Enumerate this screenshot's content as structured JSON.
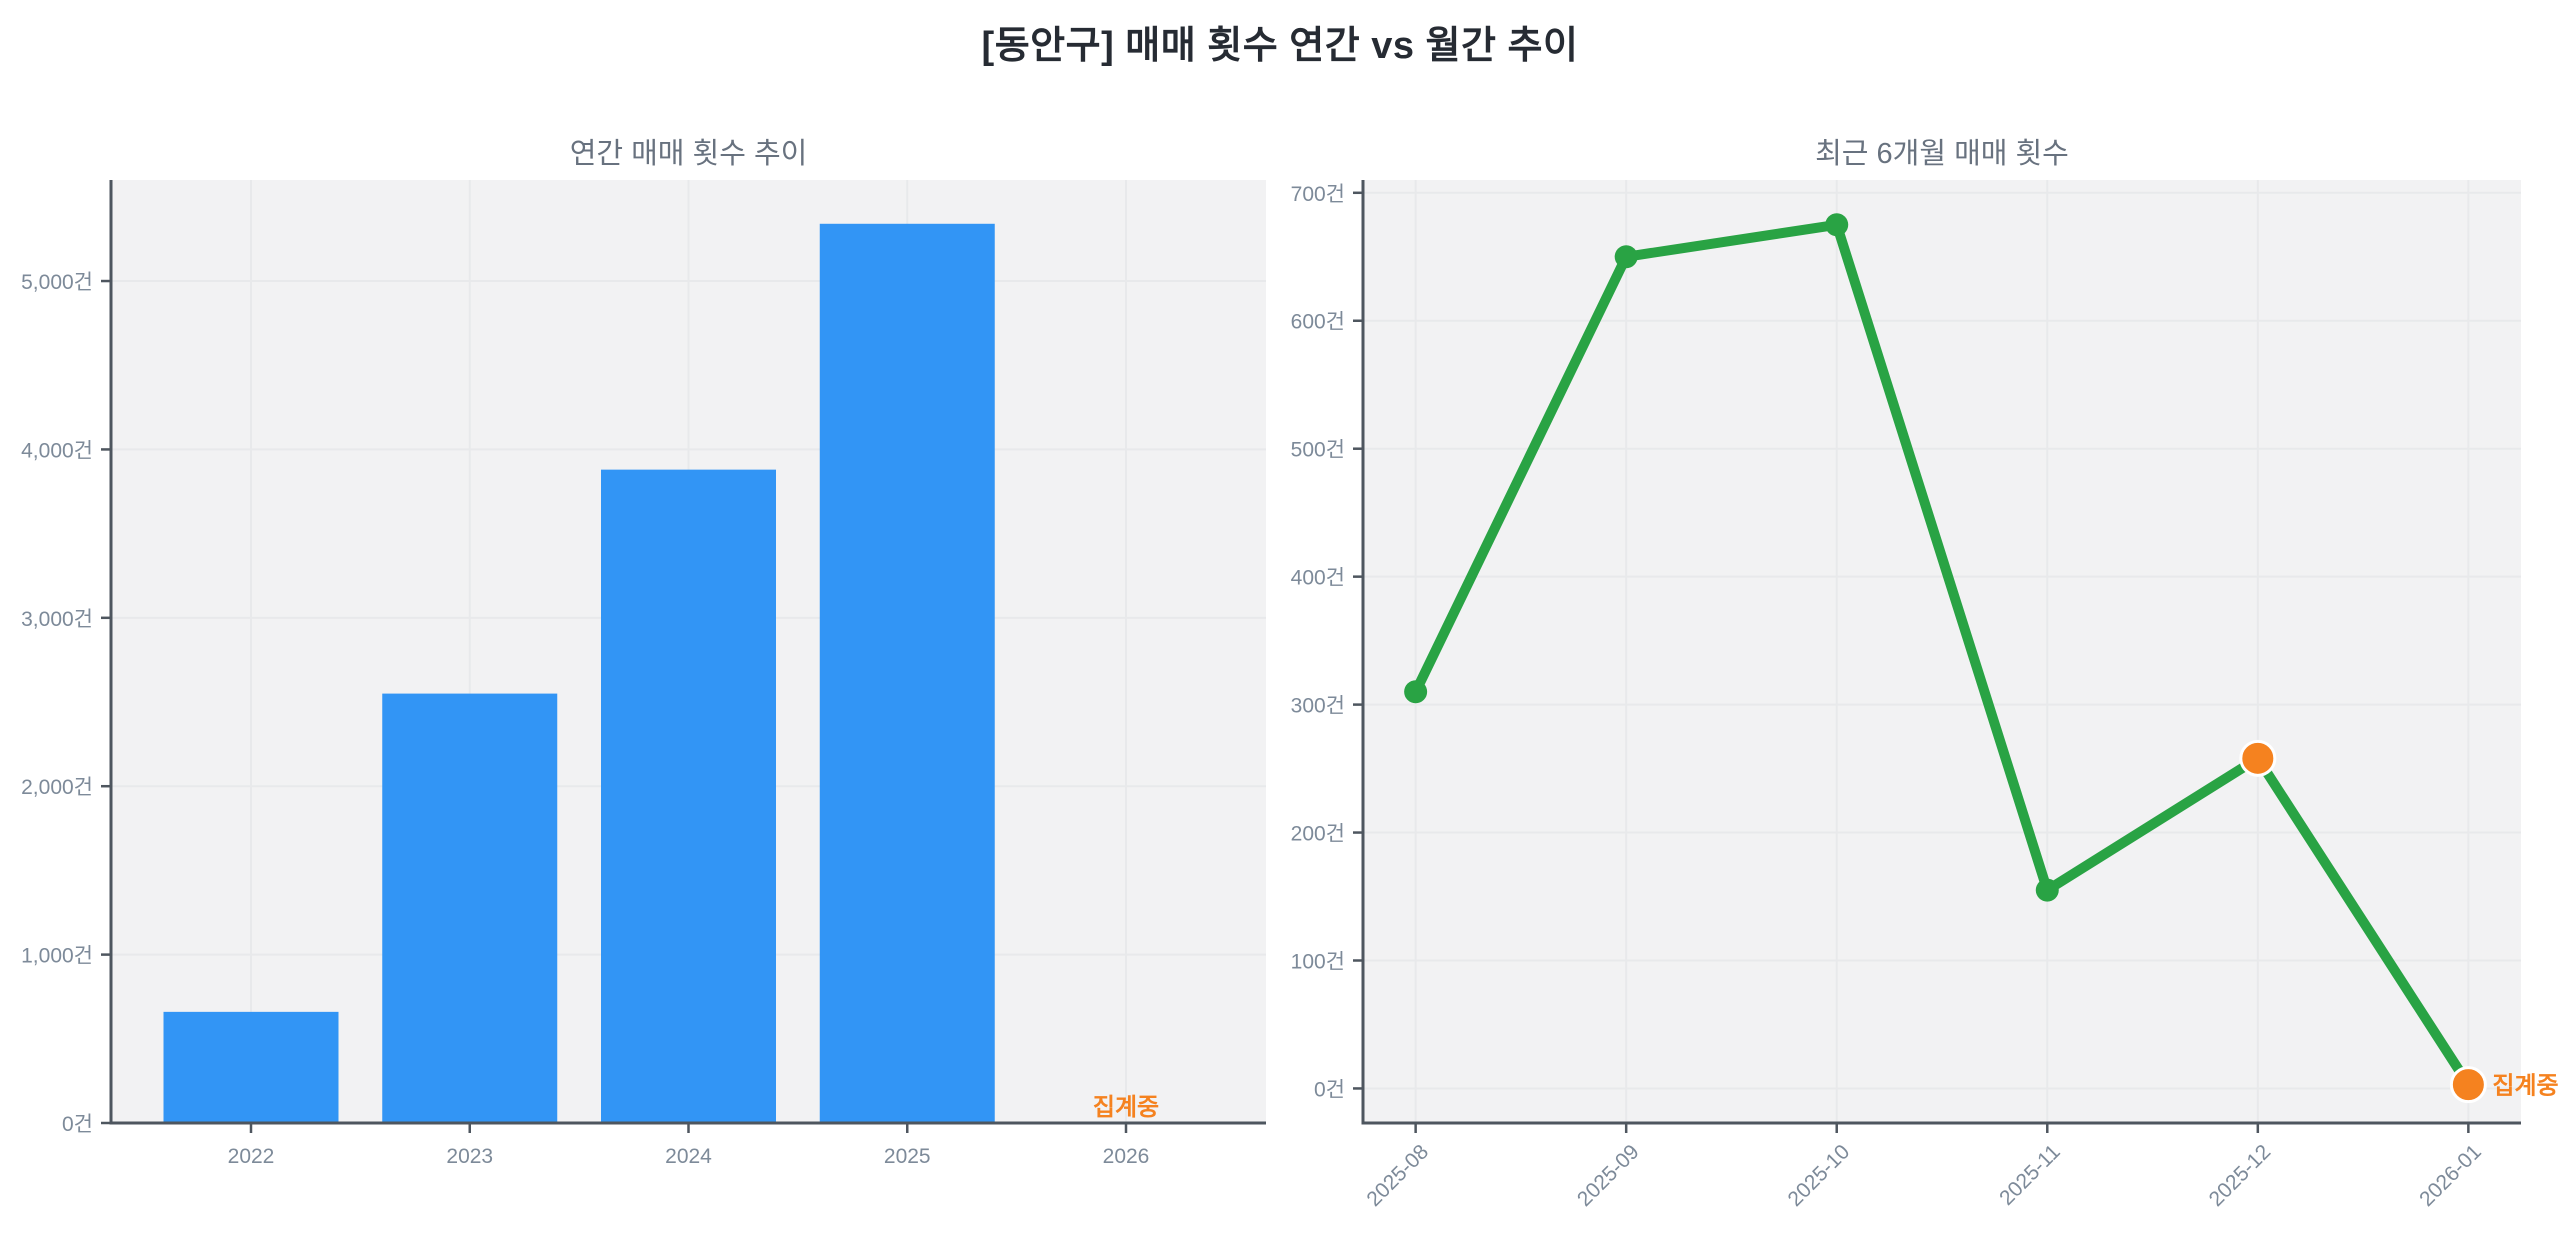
{
  "page": {
    "title": "[동안구] 매매 횟수 연간 vs 월간 추이"
  },
  "colors": {
    "figure_background": "#ffffff",
    "plot_background": "#f2f2f3",
    "gridline": "#e8e9eb",
    "spine": "#4e565f",
    "tick_label": "#7d8a99",
    "subtitle": "#68727f",
    "main_title": "#262b33",
    "bar_blue": "#3295f5",
    "line_green": "#29a344",
    "accent_orange": "#f5821f"
  },
  "annotations": {
    "collecting_label": "집계중"
  },
  "chart_data": [
    {
      "type": "bar",
      "title": "연간 매매 횟수 추이",
      "categories": [
        "2022",
        "2023",
        "2024",
        "2025",
        "2026"
      ],
      "values": [
        660,
        2550,
        3880,
        5340,
        0
      ],
      "unit": "건",
      "yticks": [
        0,
        1000,
        2000,
        3000,
        4000,
        5000
      ],
      "ytick_labels": [
        "0건",
        "1,000건",
        "2,000건",
        "3,000건",
        "4,000건",
        "5,000건"
      ],
      "ylim": [
        0,
        5600
      ],
      "grid": true,
      "legend_position": "none",
      "bar_color": "#3295f5",
      "annotation": {
        "text": "집계중",
        "category": "2026",
        "meaning": "aggregating - no bar for 2026"
      }
    },
    {
      "type": "line",
      "title": "최근 6개월 매매 횟수",
      "x": [
        "2025-08",
        "2025-09",
        "2025-10",
        "2025-11",
        "2025-12",
        "2026-01"
      ],
      "values": [
        310,
        650,
        675,
        155,
        258,
        3
      ],
      "unit": "건",
      "yticks": [
        0,
        100,
        200,
        300,
        400,
        500,
        600,
        700
      ],
      "ytick_labels": [
        "0건",
        "100건",
        "200건",
        "300건",
        "400건",
        "500건",
        "600건",
        "700건"
      ],
      "ylim": [
        -27,
        710
      ],
      "grid": true,
      "legend_position": "none",
      "x_tick_rotation": 45,
      "line_color": "#29a344",
      "highlight_color": "#f5821f",
      "highlight_indices": [
        4,
        5
      ],
      "annotation": {
        "text": "집계중",
        "x": "2026-01",
        "meaning": "aggregating - provisional last points"
      }
    }
  ]
}
